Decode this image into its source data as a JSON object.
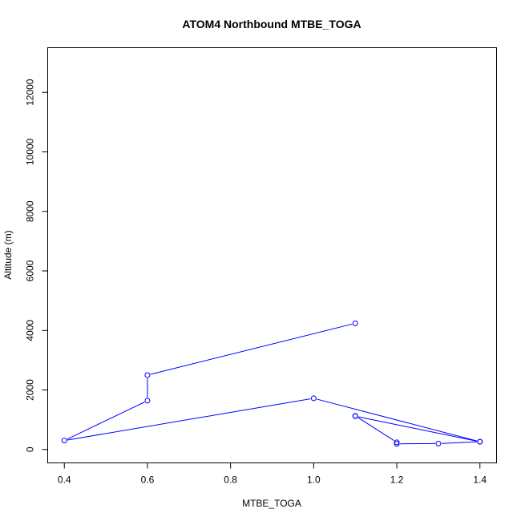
{
  "chart_data": {
    "type": "line",
    "title": "ATOM4 Northbound MTBE_TOGA",
    "xlabel": "MTBE_TOGA",
    "ylabel": "Altitude (m)",
    "xlim": [
      0.36,
      1.44
    ],
    "ylim": [
      -450,
      13500
    ],
    "x_ticks": [
      0.4,
      0.6,
      0.8,
      1.0,
      1.2,
      1.4
    ],
    "x_tick_labels": [
      "0.4",
      "0.6",
      "0.8",
      "1.0",
      "1.2",
      "1.4"
    ],
    "y_ticks": [
      0,
      2000,
      4000,
      6000,
      8000,
      10000,
      12000
    ],
    "y_tick_labels": [
      "0",
      "2000",
      "4000",
      "6000",
      "8000",
      "10000",
      "12000"
    ],
    "grid": false,
    "series": [
      {
        "color": "#0000ff",
        "points": [
          {
            "x": 1.4,
            "y": 260
          },
          {
            "x": 1.3,
            "y": 200
          },
          {
            "x": 1.2,
            "y": 190
          },
          {
            "x": 1.2,
            "y": 240
          },
          {
            "x": 1.1,
            "y": 1130
          },
          {
            "x": 1.1,
            "y": 1120
          },
          {
            "x": 1.4,
            "y": 260
          },
          {
            "x": 1.0,
            "y": 1720
          },
          {
            "x": 0.4,
            "y": 300
          },
          {
            "x": 0.6,
            "y": 1640
          },
          {
            "x": 0.6,
            "y": 2500
          },
          {
            "x": 1.1,
            "y": 4240
          }
        ]
      }
    ]
  }
}
